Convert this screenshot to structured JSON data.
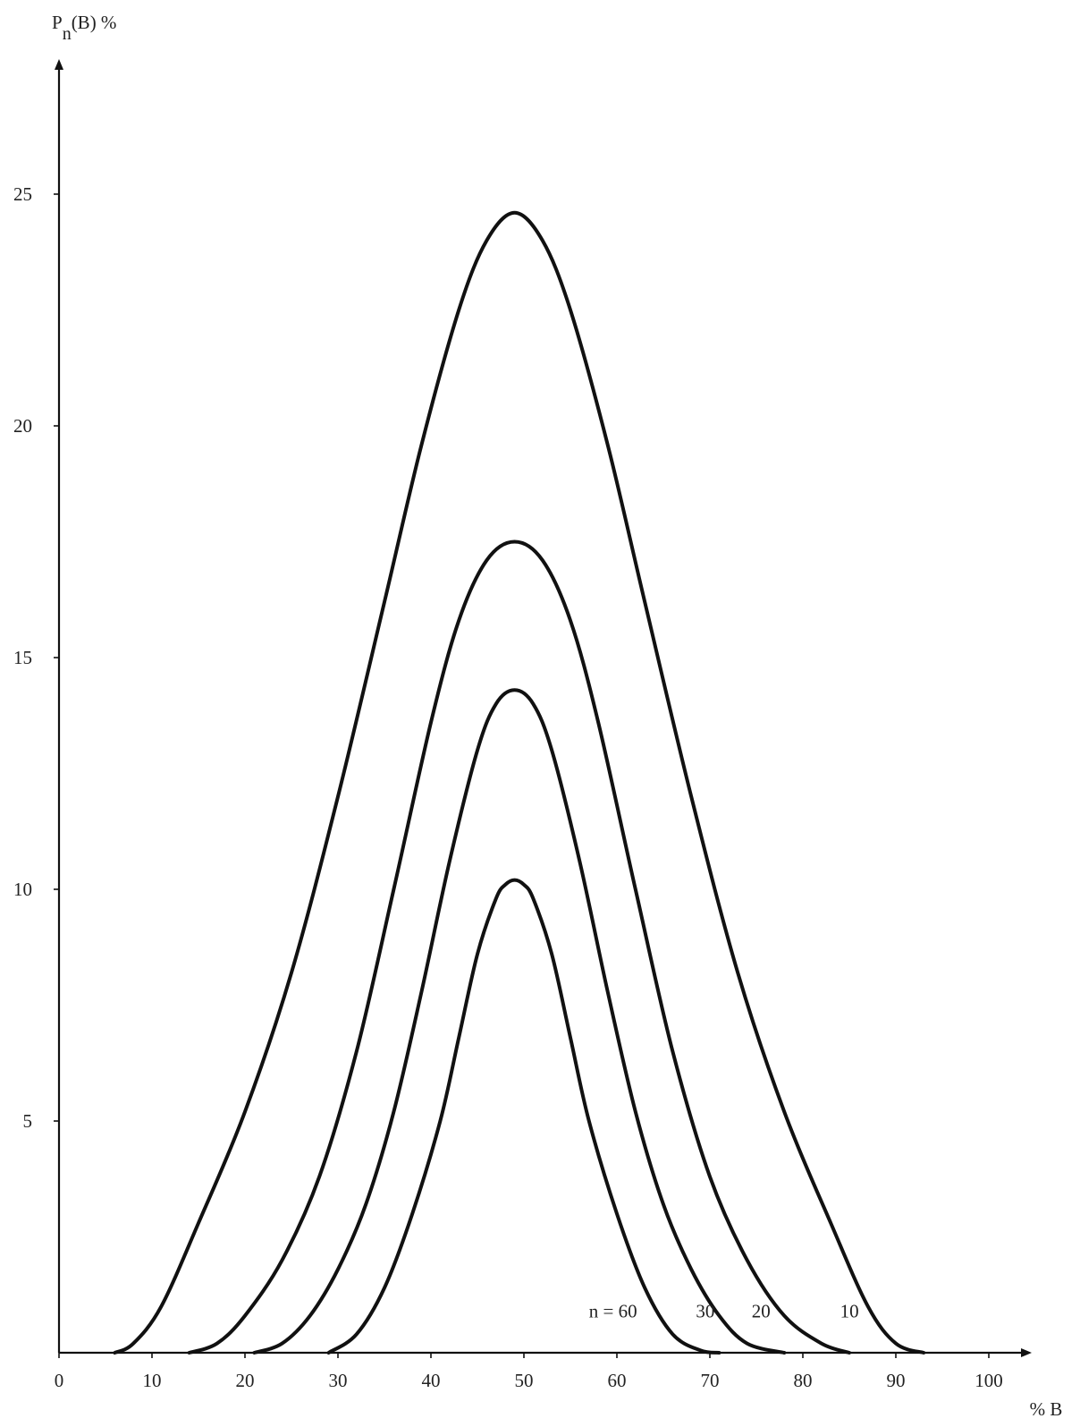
{
  "chart_data": {
    "type": "line",
    "title": "",
    "ylabel": "P",
    "ylabel_sub": "n",
    "ylabel_tail": "(B) %",
    "xlabel": "% B",
    "xlim": [
      0,
      105
    ],
    "ylim": [
      0,
      27
    ],
    "x_ticks": [
      0,
      10,
      20,
      30,
      40,
      50,
      60,
      70,
      80,
      90,
      100
    ],
    "y_ticks": [
      5,
      10,
      15,
      20,
      25
    ],
    "grid": false,
    "series": [
      {
        "name": "n = 60",
        "points": [
          [
            29,
            0
          ],
          [
            32,
            0.4
          ],
          [
            35,
            1.4
          ],
          [
            38,
            3.0
          ],
          [
            41,
            5.0
          ],
          [
            43,
            6.8
          ],
          [
            45,
            8.6
          ],
          [
            47,
            9.8
          ],
          [
            48,
            10.1
          ],
          [
            49,
            10.2
          ],
          [
            50,
            10.1
          ],
          [
            51,
            9.8
          ],
          [
            53,
            8.6
          ],
          [
            55,
            6.8
          ],
          [
            57,
            5.0
          ],
          [
            60,
            3.0
          ],
          [
            63,
            1.4
          ],
          [
            66,
            0.4
          ],
          [
            69,
            0.05
          ],
          [
            71,
            0
          ]
        ]
      },
      {
        "name": "30",
        "points": [
          [
            21,
            0
          ],
          [
            24,
            0.2
          ],
          [
            27,
            0.8
          ],
          [
            30,
            1.8
          ],
          [
            33,
            3.2
          ],
          [
            36,
            5.2
          ],
          [
            39,
            7.8
          ],
          [
            42,
            10.6
          ],
          [
            45,
            13.0
          ],
          [
            47,
            14.0
          ],
          [
            49,
            14.3
          ],
          [
            51,
            14.0
          ],
          [
            53,
            13.0
          ],
          [
            56,
            10.6
          ],
          [
            59,
            7.8
          ],
          [
            62,
            5.2
          ],
          [
            65,
            3.2
          ],
          [
            68,
            1.8
          ],
          [
            71,
            0.8
          ],
          [
            74,
            0.2
          ],
          [
            78,
            0
          ]
        ]
      },
      {
        "name": "20",
        "points": [
          [
            14,
            0
          ],
          [
            17,
            0.2
          ],
          [
            20,
            0.8
          ],
          [
            24,
            2.0
          ],
          [
            28,
            3.8
          ],
          [
            32,
            6.5
          ],
          [
            36,
            10.0
          ],
          [
            40,
            13.6
          ],
          [
            43,
            15.8
          ],
          [
            46,
            17.1
          ],
          [
            49,
            17.5
          ],
          [
            52,
            17.1
          ],
          [
            55,
            15.8
          ],
          [
            58,
            13.6
          ],
          [
            62,
            10.0
          ],
          [
            66,
            6.5
          ],
          [
            70,
            3.8
          ],
          [
            74,
            2.0
          ],
          [
            78,
            0.8
          ],
          [
            82,
            0.2
          ],
          [
            85,
            0
          ]
        ]
      },
      {
        "name": "10",
        "points": [
          [
            6,
            0
          ],
          [
            8,
            0.2
          ],
          [
            11,
            1.0
          ],
          [
            15,
            2.8
          ],
          [
            20,
            5.2
          ],
          [
            25,
            8.2
          ],
          [
            30,
            12.0
          ],
          [
            35,
            16.2
          ],
          [
            39,
            19.6
          ],
          [
            43,
            22.5
          ],
          [
            46,
            24.0
          ],
          [
            49,
            24.6
          ],
          [
            52,
            24.0
          ],
          [
            55,
            22.5
          ],
          [
            59,
            19.6
          ],
          [
            63,
            16.2
          ],
          [
            68,
            12.0
          ],
          [
            73,
            8.2
          ],
          [
            78,
            5.2
          ],
          [
            83,
            2.8
          ],
          [
            87,
            1.0
          ],
          [
            90,
            0.2
          ],
          [
            93,
            0
          ]
        ]
      }
    ],
    "series_label_positions": [
      {
        "name": "n = 60",
        "x": 57,
        "y": 0.8
      },
      {
        "name": "30",
        "x": 68.5,
        "y": 0.8
      },
      {
        "name": "20",
        "x": 74.5,
        "y": 0.8
      },
      {
        "name": "10",
        "x": 84,
        "y": 0.8
      }
    ]
  }
}
